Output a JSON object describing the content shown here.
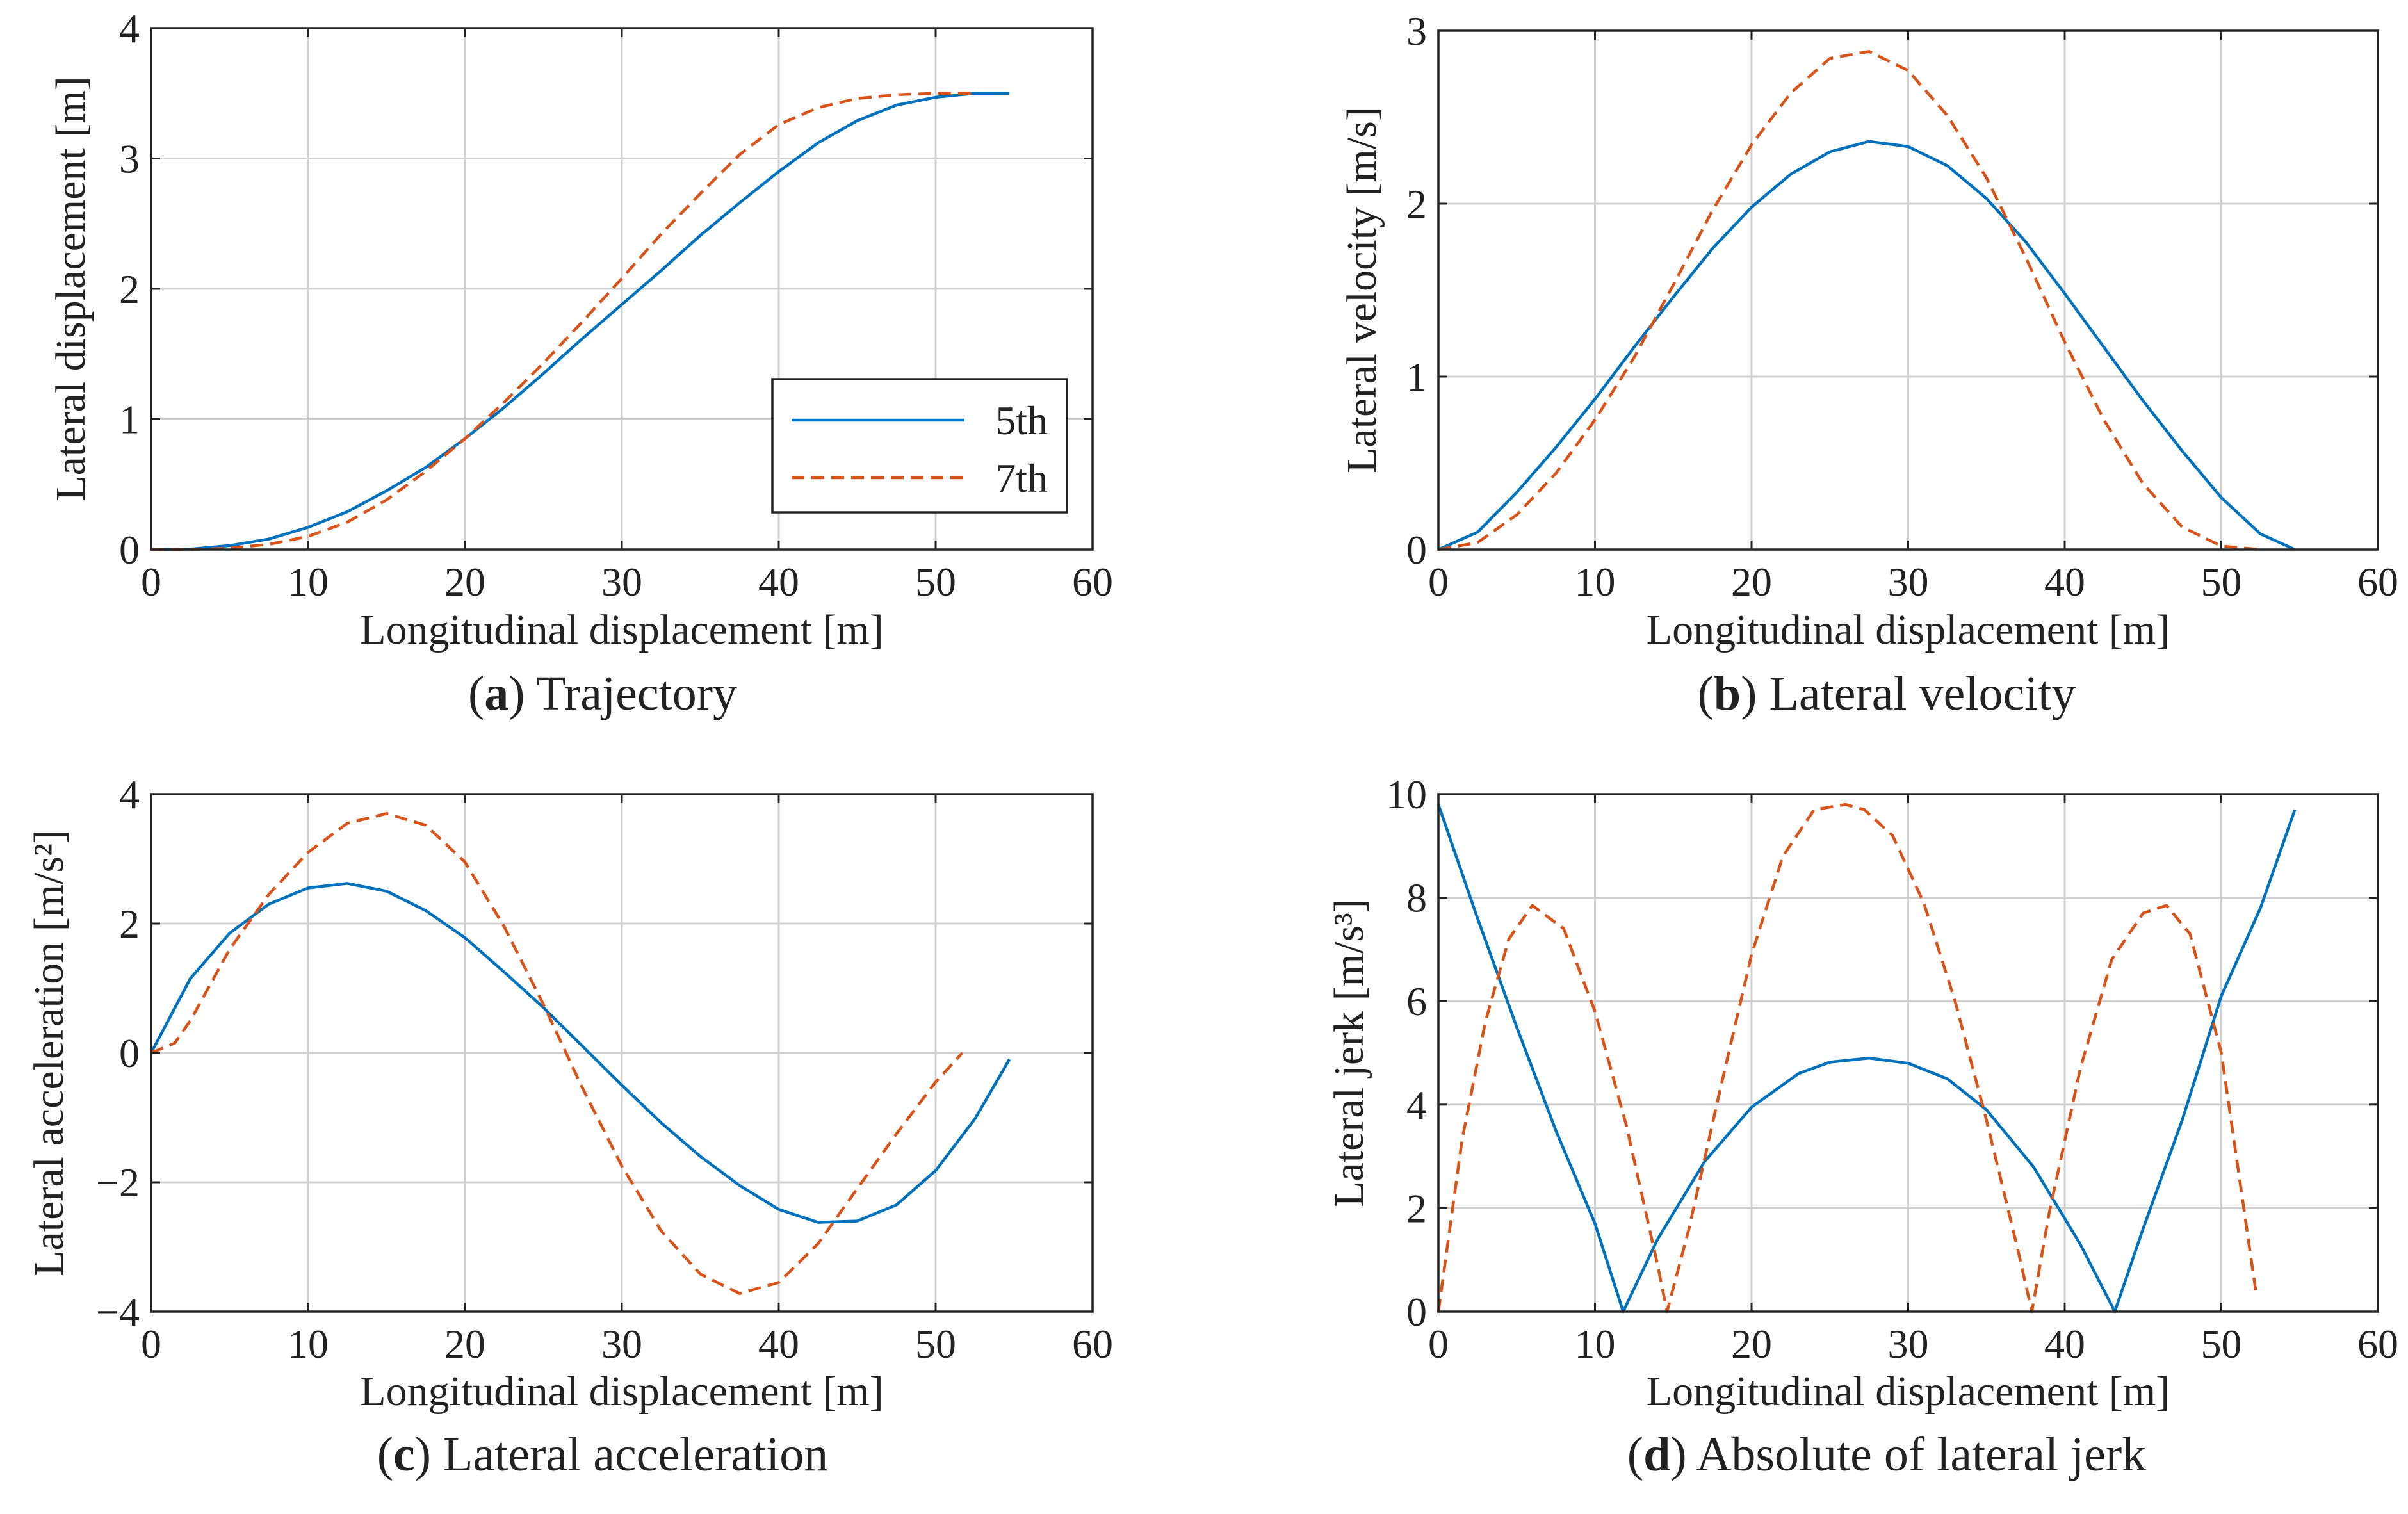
{
  "colors": {
    "series_5th": "#0072BD",
    "series_7th": "#D95319",
    "grid": "#d0d0d0",
    "axis": "#222222"
  },
  "legend": {
    "entries": [
      "5th",
      "7th"
    ]
  },
  "chart_data": [
    {
      "id": "a",
      "type": "line",
      "caption_letter": "a",
      "caption_text": ") Trajectory",
      "xlabel": "Longitudinal displacement [m]",
      "ylabel": "Lateral displacement [m]",
      "xlim": [
        0,
        60
      ],
      "ylim": [
        0,
        4
      ],
      "xticks": [
        0,
        10,
        20,
        30,
        40,
        50,
        60
      ],
      "yticks": [
        0,
        1,
        2,
        3,
        4
      ],
      "ytick_labels": [
        "0",
        "1",
        "2",
        "3",
        "4"
      ],
      "grid": true,
      "legend": "bottom-right",
      "series": [
        {
          "name": "5th",
          "style": "solid",
          "x": [
            0,
            2.5,
            5,
            7.5,
            10,
            12.5,
            15,
            17.5,
            20,
            22.5,
            25,
            27.5,
            30,
            32.5,
            35,
            37.5,
            40,
            42.5,
            45,
            47.5,
            50,
            52.5,
            54.7
          ],
          "y": [
            0,
            0.003,
            0.03,
            0.08,
            0.17,
            0.29,
            0.45,
            0.63,
            0.85,
            1.09,
            1.35,
            1.62,
            1.88,
            2.14,
            2.41,
            2.66,
            2.9,
            3.12,
            3.29,
            3.41,
            3.47,
            3.5,
            3.5
          ]
        },
        {
          "name": "7th",
          "style": "dashed",
          "x": [
            0,
            2.5,
            5,
            7.5,
            10,
            12.5,
            15,
            17.5,
            20,
            22.5,
            25,
            27.5,
            30,
            32.5,
            35,
            37.5,
            40,
            42.5,
            45,
            47.5,
            50,
            52.5
          ],
          "y": [
            0,
            0.001,
            0.01,
            0.04,
            0.1,
            0.21,
            0.38,
            0.6,
            0.85,
            1.13,
            1.43,
            1.75,
            2.08,
            2.42,
            2.73,
            3.03,
            3.26,
            3.39,
            3.46,
            3.49,
            3.5,
            3.5
          ]
        }
      ]
    },
    {
      "id": "b",
      "type": "line",
      "caption_letter": "b",
      "caption_text": ") Lateral velocity",
      "xlabel": "Longitudinal displacement [m]",
      "ylabel": "Lateral velocity [m/s]",
      "xlim": [
        0,
        60
      ],
      "ylim": [
        0,
        3
      ],
      "xticks": [
        0,
        10,
        20,
        30,
        40,
        50,
        60
      ],
      "yticks": [
        0,
        1,
        2,
        3
      ],
      "ytick_labels": [
        "0",
        "1",
        "2",
        "3"
      ],
      "grid": true,
      "series": [
        {
          "name": "5th",
          "style": "solid",
          "x": [
            0,
            2.5,
            5,
            7.5,
            10,
            12.5,
            15,
            17.5,
            20,
            22.5,
            25,
            27.5,
            30,
            32.5,
            35,
            37.5,
            40,
            42.5,
            45,
            47.5,
            50,
            52.5,
            54.7
          ],
          "y": [
            0,
            0.1,
            0.33,
            0.59,
            0.87,
            1.17,
            1.46,
            1.74,
            1.98,
            2.17,
            2.3,
            2.36,
            2.33,
            2.22,
            2.03,
            1.78,
            1.48,
            1.17,
            0.86,
            0.57,
            0.3,
            0.09,
            0
          ]
        },
        {
          "name": "7th",
          "style": "dashed",
          "x": [
            0,
            2.5,
            5,
            7.5,
            10,
            12.5,
            15,
            17.5,
            20,
            22.5,
            25,
            27.5,
            30,
            32.5,
            35,
            37.5,
            40,
            42.5,
            45,
            47.5,
            50,
            52.5
          ],
          "y": [
            0,
            0.04,
            0.2,
            0.44,
            0.75,
            1.11,
            1.53,
            1.96,
            2.34,
            2.64,
            2.84,
            2.88,
            2.77,
            2.51,
            2.15,
            1.69,
            1.2,
            0.75,
            0.38,
            0.13,
            0.02,
            0
          ]
        }
      ]
    },
    {
      "id": "c",
      "type": "line",
      "caption_letter": "c",
      "caption_text": ") Lateral acceleration",
      "xlabel": "Longitudinal displacement [m]",
      "ylabel": "Lateral acceleration  [m/s²]",
      "xlim": [
        0,
        60
      ],
      "ylim": [
        -4,
        4
      ],
      "xticks": [
        0,
        10,
        20,
        30,
        40,
        50,
        60
      ],
      "yticks": [
        -4,
        -2,
        0,
        2,
        4
      ],
      "ytick_labels": [
        "−4",
        "−2",
        "0",
        "2",
        "4"
      ],
      "grid": true,
      "series": [
        {
          "name": "5th",
          "style": "solid",
          "x": [
            0,
            2.5,
            5,
            7.5,
            10,
            12.5,
            15,
            17.5,
            20,
            22.5,
            25,
            27.5,
            30,
            32.5,
            35,
            37.5,
            40,
            42.5,
            45,
            47.5,
            50,
            52.5,
            54.7
          ],
          "y": [
            0,
            1.15,
            1.85,
            2.3,
            2.55,
            2.62,
            2.5,
            2.2,
            1.78,
            1.25,
            0.7,
            0.1,
            -0.5,
            -1.08,
            -1.6,
            -2.05,
            -2.42,
            -2.62,
            -2.6,
            -2.35,
            -1.82,
            -1.02,
            -0.1
          ]
        },
        {
          "name": "7th",
          "style": "dashed",
          "x": [
            0,
            1.5,
            2.5,
            5,
            7.5,
            10,
            12.5,
            15,
            17.5,
            20,
            22.5,
            25,
            27.5,
            30,
            32.5,
            35,
            37.5,
            40,
            42.5,
            45,
            47.5,
            50,
            51.7
          ],
          "y": [
            0,
            0.15,
            0.5,
            1.6,
            2.45,
            3.1,
            3.55,
            3.7,
            3.52,
            2.95,
            1.95,
            0.75,
            -0.55,
            -1.75,
            -2.75,
            -3.42,
            -3.72,
            -3.55,
            -2.95,
            -2.1,
            -1.25,
            -0.45,
            0
          ]
        }
      ]
    },
    {
      "id": "d",
      "type": "line",
      "caption_letter": "d",
      "caption_text": ") Absolute of lateral jerk",
      "xlabel": "Longitudinal displacement [m]",
      "ylabel": "Lateral jerk [m/s³]",
      "xlim": [
        0,
        60
      ],
      "ylim": [
        0,
        10
      ],
      "xticks": [
        0,
        10,
        20,
        30,
        40,
        50,
        60
      ],
      "yticks": [
        0,
        2,
        4,
        6,
        8,
        10
      ],
      "ytick_labels": [
        "0",
        "2",
        "4",
        "6",
        "8",
        "10"
      ],
      "grid": true,
      "series": [
        {
          "name": "5th",
          "style": "solid",
          "x": [
            0,
            2.5,
            5,
            7.5,
            10,
            11.8,
            14,
            17,
            20,
            23,
            25,
            27.5,
            30,
            32.5,
            35,
            38,
            41,
            43.2,
            45,
            47.5,
            50,
            52.5,
            54.7
          ],
          "y": [
            9.8,
            7.6,
            5.5,
            3.5,
            1.7,
            0,
            1.4,
            2.9,
            3.95,
            4.6,
            4.82,
            4.9,
            4.8,
            4.5,
            3.9,
            2.8,
            1.3,
            0,
            1.6,
            3.7,
            6.1,
            7.8,
            9.7
          ]
        },
        {
          "name": "7th",
          "style": "dashed",
          "x": [
            0,
            1.5,
            3,
            4.5,
            6,
            8,
            10,
            12,
            14,
            14.6,
            16,
            18,
            20,
            22,
            24,
            26,
            27.2,
            29,
            31,
            33,
            35,
            37,
            37.9,
            39,
            41,
            43,
            45,
            46.5,
            48,
            50,
            52.2
          ],
          "y": [
            0,
            3.3,
            5.6,
            7.2,
            7.85,
            7.4,
            5.8,
            3.6,
            0.9,
            0,
            1.6,
            4.3,
            6.9,
            8.8,
            9.7,
            9.8,
            9.7,
            9.2,
            7.9,
            6,
            3.7,
            1.2,
            0,
            1.9,
            4.7,
            6.8,
            7.7,
            7.85,
            7.3,
            5,
            0.4
          ]
        }
      ]
    }
  ]
}
